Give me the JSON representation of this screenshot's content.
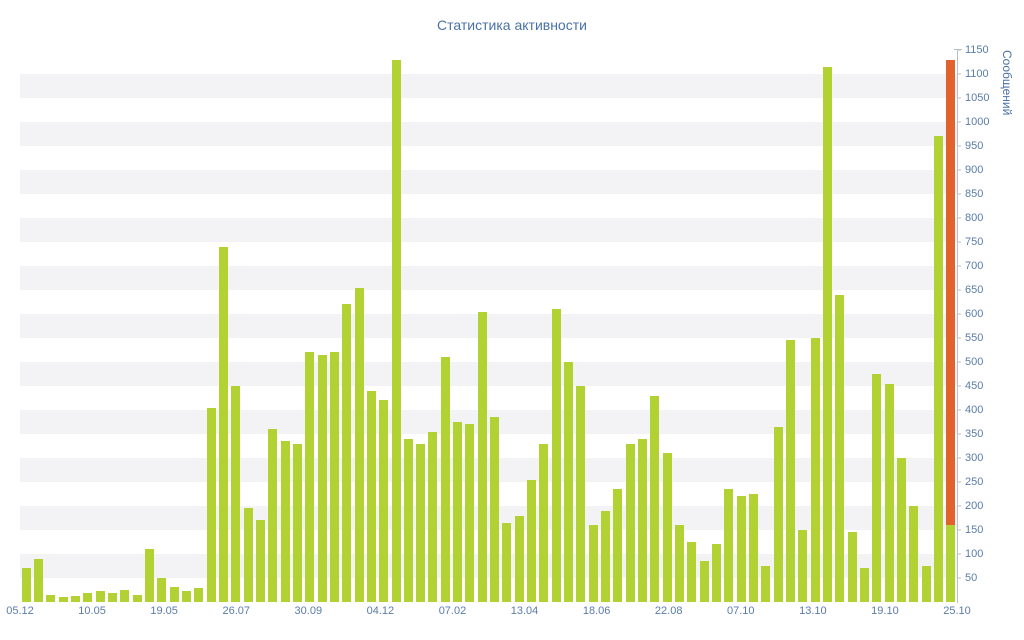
{
  "page": {
    "title": "Статистика активности"
  },
  "chart_data": {
    "type": "bar",
    "title": "Статистика активности",
    "xlabel": "",
    "ylabel": "Сообщений",
    "ylim": [
      0,
      1150
    ],
    "ytick_step": 50,
    "yticks": [
      50,
      100,
      150,
      200,
      250,
      300,
      350,
      400,
      450,
      500,
      550,
      600,
      650,
      700,
      750,
      800,
      850,
      900,
      950,
      1000,
      1050,
      1100,
      1150
    ],
    "x_tick_labels": [
      "05.12",
      "10.05",
      "19.05",
      "26.07",
      "30.09",
      "04.12",
      "07.02",
      "13.04",
      "18.06",
      "22.08",
      "07.10",
      "13.10",
      "19.10",
      "25.10"
    ],
    "values": [
      70,
      90,
      15,
      10,
      12,
      18,
      22,
      18,
      25,
      15,
      110,
      50,
      32,
      22,
      30,
      405,
      740,
      450,
      195,
      170,
      360,
      335,
      330,
      520,
      515,
      520,
      620,
      655,
      440,
      420,
      1130,
      340,
      330,
      355,
      510,
      375,
      370,
      605,
      385,
      165,
      180,
      255,
      330,
      610,
      500,
      450,
      160,
      190,
      235,
      330,
      340,
      430,
      310,
      160,
      125,
      85,
      120,
      235,
      220,
      225,
      75,
      365,
      545,
      150,
      550,
      1115,
      640,
      145,
      70,
      475,
      455,
      300,
      200,
      75,
      970,
      1130
    ],
    "highlight": {
      "index": 75,
      "value": 1130,
      "base_value": 160
    },
    "grid": "striped-bands",
    "legend": "off",
    "colors": {
      "bar": "#b2d233",
      "highlight": "#e2622d",
      "stripe": "#f3f3f6",
      "axis": "#b7c0cd",
      "tick": "#5a7ca8",
      "title": "#4a72a8"
    }
  }
}
